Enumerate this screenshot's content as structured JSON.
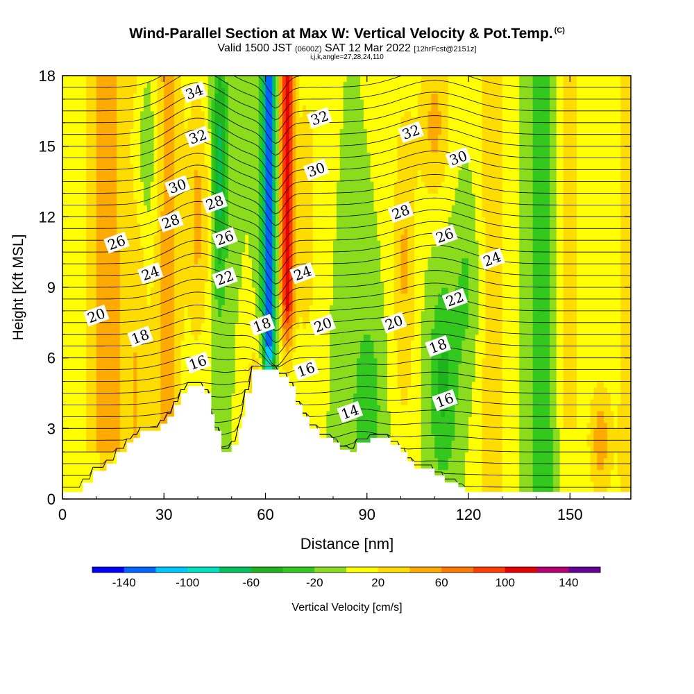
{
  "title": "Wind-Parallel Section at Max W: Vertical Velocity & Pot.Temp.",
  "title_mark": "(C)",
  "subtitle": {
    "lead": "Valid 1500 JST",
    "zulu": "(0600Z)",
    "date": "SAT 12 Mar 2022",
    "forecast": "[12hrFcst@2151z]"
  },
  "indices": "i,j,k,angle=27,28,24,110",
  "chart_data": {
    "type": "heatmap",
    "xlabel": "Distance [nm]",
    "ylabel": "Height [Kft MSL]",
    "xlim": [
      0,
      168
    ],
    "ylim": [
      0,
      18
    ],
    "x_ticks": [
      "0",
      "30",
      "60",
      "90",
      "120",
      "150"
    ],
    "y_ticks": [
      "0",
      "3",
      "6",
      "9",
      "12",
      "15",
      "18"
    ],
    "colorbar": {
      "label": "Vertical Velocity [cm/s]",
      "tick_labels": [
        "-140",
        "-100",
        "-60",
        "-20",
        "20",
        "60",
        "100",
        "140"
      ],
      "colors": [
        "#0000ff",
        "#0064ff",
        "#00c8ff",
        "#00e0c0",
        "#00c060",
        "#1eb41e",
        "#32c81e",
        "#8cdc1e",
        "#ffff00",
        "#ffdc00",
        "#ffaa00",
        "#ff7800",
        "#ff3c00",
        "#e60000",
        "#b4006e",
        "#640096"
      ]
    },
    "terrain": [
      [
        0,
        0.3
      ],
      [
        6,
        0.3
      ],
      [
        6,
        0.7
      ],
      [
        9,
        0.7
      ],
      [
        9,
        1.2
      ],
      [
        13,
        1.2
      ],
      [
        13,
        1.5
      ],
      [
        16,
        1.5
      ],
      [
        16,
        2.0
      ],
      [
        19,
        2.0
      ],
      [
        19,
        2.4
      ],
      [
        21,
        2.4
      ],
      [
        21,
        2.6
      ],
      [
        23,
        2.6
      ],
      [
        23,
        2.9
      ],
      [
        29,
        2.9
      ],
      [
        29,
        3.2
      ],
      [
        31,
        3.2
      ],
      [
        31,
        3.5
      ],
      [
        33,
        3.5
      ],
      [
        33,
        4.0
      ],
      [
        35,
        4.0
      ],
      [
        35,
        4.5
      ],
      [
        37,
        4.5
      ],
      [
        37,
        4.8
      ],
      [
        42,
        4.8
      ],
      [
        42,
        4.5
      ],
      [
        44,
        4.5
      ],
      [
        44,
        3.6
      ],
      [
        45,
        3.6
      ],
      [
        45,
        2.9
      ],
      [
        47,
        2.9
      ],
      [
        47,
        2.0
      ],
      [
        50,
        2.0
      ],
      [
        50,
        2.3
      ],
      [
        52,
        2.3
      ],
      [
        52,
        3.0
      ],
      [
        53,
        3.0
      ],
      [
        53,
        3.5
      ],
      [
        54,
        3.5
      ],
      [
        54,
        4.5
      ],
      [
        56,
        4.5
      ],
      [
        56,
        5.5
      ],
      [
        64,
        5.5
      ],
      [
        64,
        5.2
      ],
      [
        67,
        5.2
      ],
      [
        67,
        4.8
      ],
      [
        69,
        4.8
      ],
      [
        69,
        4.0
      ],
      [
        71,
        4.0
      ],
      [
        71,
        3.5
      ],
      [
        73,
        3.5
      ],
      [
        73,
        3.0
      ],
      [
        76,
        3.0
      ],
      [
        76,
        2.6
      ],
      [
        80,
        2.6
      ],
      [
        80,
        2.4
      ],
      [
        82,
        2.4
      ],
      [
        82,
        2.1
      ],
      [
        85,
        2.1
      ],
      [
        85,
        2.0
      ],
      [
        87,
        2.0
      ],
      [
        87,
        2.4
      ],
      [
        91,
        2.4
      ],
      [
        91,
        2.6
      ],
      [
        97,
        2.6
      ],
      [
        97,
        2.3
      ],
      [
        100,
        2.3
      ],
      [
        100,
        2.0
      ],
      [
        102,
        2.0
      ],
      [
        102,
        1.6
      ],
      [
        104,
        1.6
      ],
      [
        104,
        1.3
      ],
      [
        110,
        1.3
      ],
      [
        110,
        1.0
      ],
      [
        113,
        1.0
      ],
      [
        113,
        0.7
      ],
      [
        117,
        0.7
      ],
      [
        117,
        0.5
      ],
      [
        119,
        0.5
      ],
      [
        119,
        0.3
      ],
      [
        168,
        0.3
      ]
    ],
    "theta_labels": [
      {
        "text": "34",
        "x": 39,
        "y": 17.3
      },
      {
        "text": "32",
        "x": 40,
        "y": 15.4
      },
      {
        "text": "30",
        "x": 34,
        "y": 13.3
      },
      {
        "text": "28",
        "x": 45,
        "y": 12.6
      },
      {
        "text": "28",
        "x": 32,
        "y": 11.8
      },
      {
        "text": "26",
        "x": 48,
        "y": 11.1
      },
      {
        "text": "26",
        "x": 16,
        "y": 10.9
      },
      {
        "text": "24",
        "x": 26,
        "y": 9.6
      },
      {
        "text": "22",
        "x": 48,
        "y": 9.4
      },
      {
        "text": "20",
        "x": 10,
        "y": 7.8
      },
      {
        "text": "18",
        "x": 23,
        "y": 6.9
      },
      {
        "text": "18",
        "x": 59,
        "y": 7.4
      },
      {
        "text": "16",
        "x": 40,
        "y": 5.8
      },
      {
        "text": "16",
        "x": 72,
        "y": 5.5
      },
      {
        "text": "32",
        "x": 76,
        "y": 16.2
      },
      {
        "text": "30",
        "x": 75,
        "y": 14.0
      },
      {
        "text": "24",
        "x": 71,
        "y": 9.6
      },
      {
        "text": "20",
        "x": 77,
        "y": 7.4
      },
      {
        "text": "14",
        "x": 85,
        "y": 3.7
      },
      {
        "text": "32",
        "x": 103,
        "y": 15.6
      },
      {
        "text": "30",
        "x": 117,
        "y": 14.5
      },
      {
        "text": "28",
        "x": 100,
        "y": 12.2
      },
      {
        "text": "26",
        "x": 113,
        "y": 11.2
      },
      {
        "text": "24",
        "x": 127,
        "y": 10.2
      },
      {
        "text": "22",
        "x": 116,
        "y": 8.5
      },
      {
        "text": "20",
        "x": 98,
        "y": 7.5
      },
      {
        "text": "18",
        "x": 111,
        "y": 6.5
      },
      {
        "text": "16",
        "x": 113,
        "y": 4.2
      }
    ]
  }
}
